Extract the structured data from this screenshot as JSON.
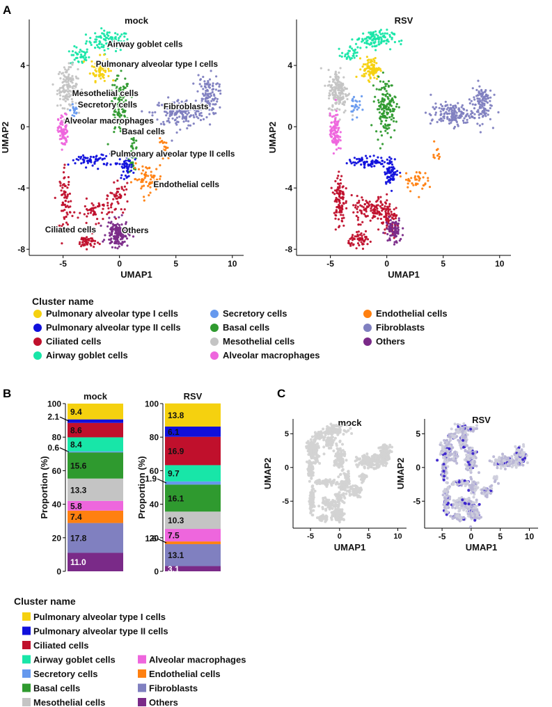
{
  "panel_labels": {
    "a": "A",
    "b": "B",
    "c": "C"
  },
  "colors": {
    "pat1": "#f5d10f",
    "pat2": "#1010dc",
    "cil": "#c0102c",
    "gob": "#18e6a8",
    "sec": "#6699ee",
    "bas": "#2f9a2f",
    "mes": "#c4c4c4",
    "mac": "#ee66dd",
    "endo": "#ff8010",
    "fib": "#8080c0",
    "oth": "#7a2a88",
    "rsv_signal": "#3a22cc",
    "grey_cells": "#d3d3d3"
  },
  "cluster_names": {
    "pat1": "Pulmonary alveolar type I cells",
    "pat2": "Pulmonary alveolar type II cells",
    "cil": "Ciliated cells",
    "gob": "Airway goblet cells",
    "sec": "Secretory cells",
    "bas": "Basal cells",
    "mes": "Mesothelial cells",
    "mac": "Alveolar macrophages",
    "endo": "Endothelial cells",
    "fib": "Fibroblasts",
    "oth": "Others"
  },
  "legend_title": "Cluster name",
  "chart_data": [
    {
      "type": "scatter",
      "panel": "A",
      "title": "mock",
      "xlabel": "UMAP1",
      "ylabel": "UMAP2",
      "xticks": [
        -5,
        0,
        5,
        10
      ],
      "yticks": [
        -8,
        -4,
        0,
        4
      ],
      "xlim": [
        -8,
        11
      ],
      "ylim": [
        -8.4,
        7
      ],
      "cluster_labels": [
        {
          "key": "gob",
          "text": "Airway goblet cells",
          "x": -1.1,
          "y": 5.2
        },
        {
          "key": "pat1",
          "text": "Pulmonary alveolar type I cells",
          "x": -2.1,
          "y": 3.9
        },
        {
          "key": "mes",
          "text": "Mesothelial cells",
          "x": -4.2,
          "y": 2.0
        },
        {
          "key": "sec",
          "text": "Secretory cells",
          "x": -3.7,
          "y": 1.25
        },
        {
          "key": "fib",
          "text": "Fibroblasts",
          "x": 3.9,
          "y": 1.15
        },
        {
          "key": "mac",
          "text": "Alveolar macrophages",
          "x": -4.9,
          "y": 0.2
        },
        {
          "key": "bas",
          "text": "Basal cells",
          "x": 0.2,
          "y": -0.5
        },
        {
          "key": "pat2",
          "text": "Pulmonary alveolar type II cells",
          "x": -0.8,
          "y": -1.95
        },
        {
          "key": "endo",
          "text": "Endothelial cells",
          "x": 3.0,
          "y": -3.95
        },
        {
          "key": "cil",
          "text": "Ciliated cells",
          "x": -6.6,
          "y": -6.9
        },
        {
          "key": "oth",
          "text": "Others",
          "x": 0.2,
          "y": -6.95
        }
      ]
    },
    {
      "type": "scatter",
      "panel": "A",
      "title": "RSV",
      "xlabel": "UMAP1",
      "ylabel": "UMAP2",
      "xticks": [
        -5,
        0,
        5,
        10
      ],
      "yticks": [
        -8,
        -4,
        0,
        4
      ],
      "xlim": [
        -8,
        11
      ],
      "ylim": [
        -8.4,
        7
      ]
    },
    {
      "type": "bar",
      "panel": "B",
      "title": "mock",
      "ylabel": "Proportion (%)",
      "ylim": [
        0,
        100
      ],
      "yticks": [
        0,
        20,
        40,
        60,
        80,
        100
      ],
      "segments": [
        {
          "key": "oth",
          "value": 11.0
        },
        {
          "key": "fib",
          "value": 17.8
        },
        {
          "key": "endo",
          "value": 7.4
        },
        {
          "key": "mac",
          "value": 5.8
        },
        {
          "key": "mes",
          "value": 13.3
        },
        {
          "key": "bas",
          "value": 15.6
        },
        {
          "key": "sec",
          "value": 0.6
        },
        {
          "key": "gob",
          "value": 8.4
        },
        {
          "key": "cil",
          "value": 8.6
        },
        {
          "key": "pat2",
          "value": 2.1
        },
        {
          "key": "pat1",
          "value": 9.4
        }
      ]
    },
    {
      "type": "bar",
      "panel": "B",
      "title": "RSV",
      "ylabel": "Proportion (%)",
      "ylim": [
        0,
        100
      ],
      "yticks": [
        0,
        20,
        40,
        60,
        80,
        100
      ],
      "segments": [
        {
          "key": "oth",
          "value": 3.1
        },
        {
          "key": "fib",
          "value": 13.1
        },
        {
          "key": "endo",
          "value": 1.6
        },
        {
          "key": "mac",
          "value": 7.5
        },
        {
          "key": "mes",
          "value": 10.3
        },
        {
          "key": "bas",
          "value": 16.1
        },
        {
          "key": "sec",
          "value": 1.9
        },
        {
          "key": "gob",
          "value": 9.7
        },
        {
          "key": "cil",
          "value": 16.9
        },
        {
          "key": "pat2",
          "value": 6.1
        },
        {
          "key": "pat1",
          "value": 13.8
        }
      ]
    },
    {
      "type": "scatter",
      "panel": "C",
      "title": "mock",
      "xlabel": "UMAP1",
      "ylabel": "UMAP2",
      "xticks": [
        -5,
        0,
        5,
        10
      ],
      "yticks": [
        -5,
        0,
        5
      ],
      "xlim": [
        -8,
        11.5
      ],
      "ylim": [
        -9,
        7.2
      ]
    },
    {
      "type": "scatter",
      "panel": "C",
      "title": "RSV",
      "xlabel": "UMAP1",
      "ylabel": "UMAP2",
      "xticks": [
        -5,
        0,
        5,
        10
      ],
      "yticks": [
        -5,
        0,
        5
      ],
      "xlim": [
        -8,
        11.5
      ],
      "ylim": [
        -9,
        7.2
      ]
    }
  ],
  "legend_a_columns": [
    [
      "pat1",
      "pat2",
      "cil",
      "gob"
    ],
    [
      "sec",
      "bas",
      "mes",
      "mac"
    ],
    [
      "endo",
      "fib",
      "oth"
    ]
  ],
  "legend_b_columns": [
    [
      "pat1",
      "pat2",
      "cil",
      "gob",
      "sec",
      "bas",
      "mes"
    ],
    [
      "mac",
      "endo",
      "fib",
      "oth"
    ]
  ]
}
